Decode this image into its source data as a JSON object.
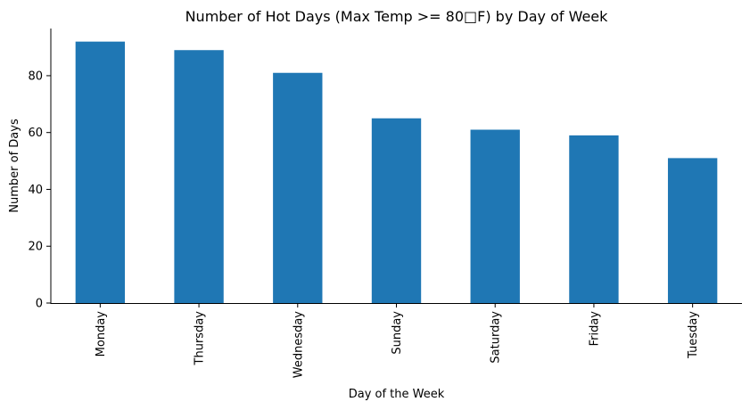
{
  "chart_data": {
    "type": "bar",
    "title": "Number of Hot Days (Max Temp >= 80□F) by Day of Week",
    "xlabel": "Day of the Week",
    "ylabel": "Number of Days",
    "categories": [
      "Monday",
      "Thursday",
      "Wednesday",
      "Sunday",
      "Saturday",
      "Friday",
      "Tuesday"
    ],
    "values": [
      92,
      89,
      81,
      65,
      61,
      59,
      51
    ],
    "ylim": [
      0,
      96.6
    ],
    "yticks": [
      0,
      20,
      40,
      60,
      80
    ],
    "ytick_labels": [
      "0",
      "20",
      "40",
      "60",
      "80"
    ],
    "grid": false,
    "legend": "none",
    "bar_color": "#1f77b4",
    "spines": [
      "left",
      "bottom"
    ]
  }
}
